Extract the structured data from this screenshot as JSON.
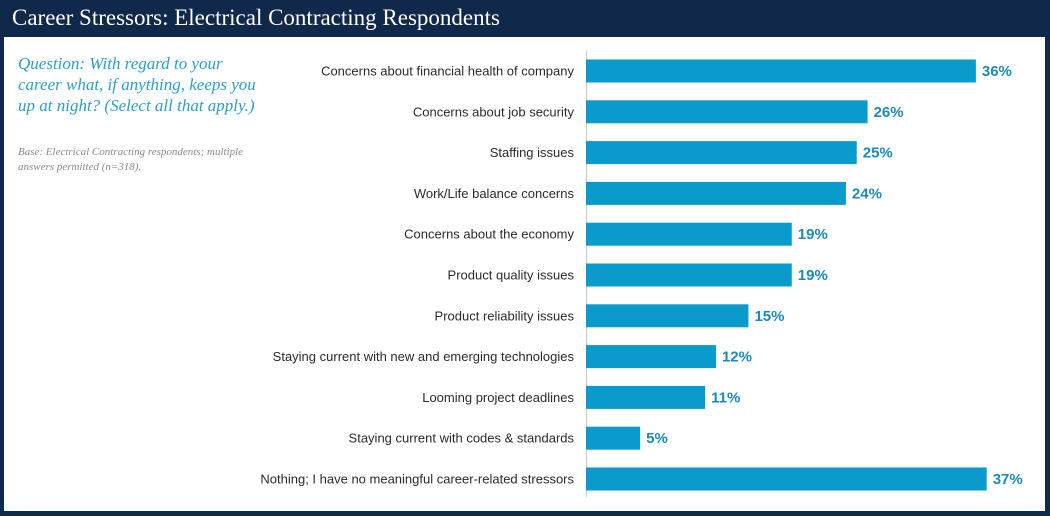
{
  "header": {
    "title": "Career Stressors: Electrical Contracting Respondents"
  },
  "question": {
    "text": "Question: With regard to your career what, if anything, keeps you up at night? (Select all that apply.)"
  },
  "base_note": {
    "text": "Base: Electrical Contracting respondents; multiple answers permitted (n=318)."
  },
  "colors": {
    "bar": "#0a9bcc",
    "value_text": "#1a8ab8",
    "header_bg": "#10284a",
    "question_text": "#2a9fc8"
  },
  "chart_data": {
    "type": "bar",
    "orientation": "horizontal",
    "title": "Career Stressors: Electrical Contracting Respondents",
    "xlabel": "",
    "ylabel": "",
    "xlim": [
      0,
      40
    ],
    "grid": false,
    "categories": [
      "Concerns about financial health of company",
      "Concerns about job security",
      "Staffing issues",
      "Work/Life balance concerns",
      "Concerns about the economy",
      "Product quality issues",
      "Product reliability issues",
      "Staying current with new and emerging technologies",
      "Looming project deadlines",
      "Staying current with codes & standards",
      "Nothing; I have no meaningful career-related stressors"
    ],
    "values": [
      36,
      26,
      25,
      24,
      19,
      19,
      15,
      12,
      11,
      5,
      37
    ],
    "value_labels": [
      "36%",
      "26%",
      "25%",
      "24%",
      "19%",
      "19%",
      "15%",
      "12%",
      "11%",
      "5%",
      "37%"
    ]
  }
}
